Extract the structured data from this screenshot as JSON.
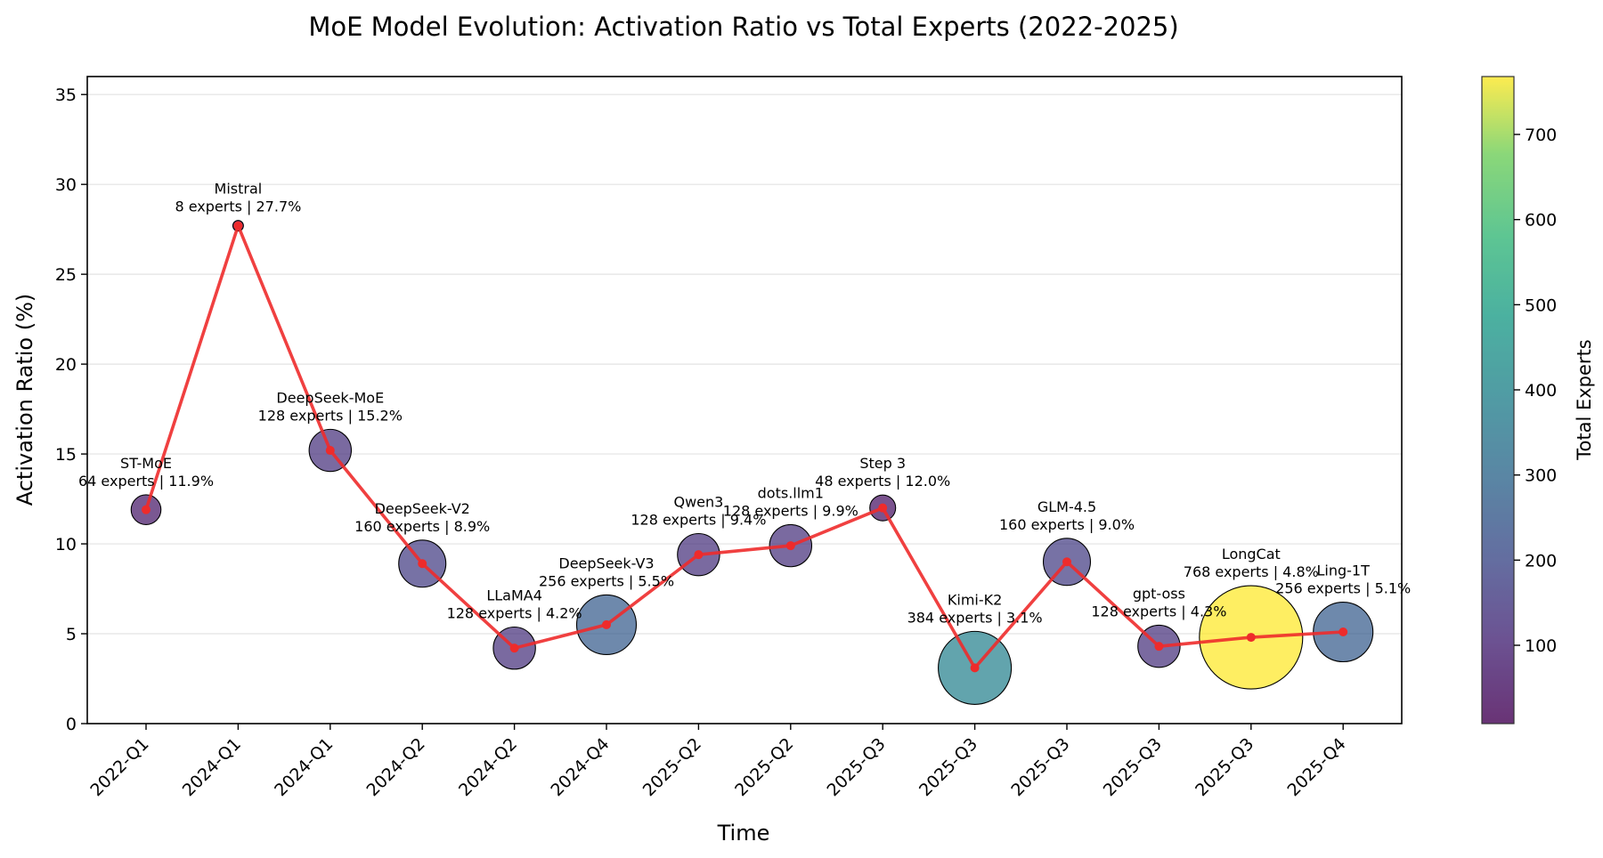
{
  "chart_data": {
    "type": "scatter",
    "title": "MoE Model Evolution: Activation Ratio vs Total Experts (2022-2025)",
    "xlabel": "Time",
    "ylabel": "Activation Ratio (%)",
    "ylim": [
      0,
      36
    ],
    "yticks": [
      0,
      5,
      10,
      15,
      20,
      25,
      30,
      35
    ],
    "grid": "horizontal",
    "line_color": "#ee2b2b",
    "colormap": "viridis",
    "colorbar": {
      "label": "Total Experts",
      "range": [
        8,
        768
      ],
      "ticks": [
        100,
        200,
        300,
        400,
        500,
        600,
        700
      ]
    },
    "categories": [
      "2022-Q1",
      "2024-Q1",
      "2024-Q1",
      "2024-Q2",
      "2024-Q2",
      "2024-Q4",
      "2025-Q2",
      "2025-Q2",
      "2025-Q3",
      "2025-Q3",
      "2025-Q3",
      "2025-Q3",
      "2025-Q3",
      "2025-Q4"
    ],
    "models": [
      {
        "name": "ST-MoE",
        "experts": 64,
        "ratio": 11.9,
        "label": "64 experts | 11.9%"
      },
      {
        "name": "Mistral",
        "experts": 8,
        "ratio": 27.7,
        "label": "8 experts | 27.7%"
      },
      {
        "name": "DeepSeek-MoE",
        "experts": 128,
        "ratio": 15.2,
        "label": "128 experts | 15.2%"
      },
      {
        "name": "DeepSeek-V2",
        "experts": 160,
        "ratio": 8.9,
        "label": "160 experts | 8.9%"
      },
      {
        "name": "LLaMA4",
        "experts": 128,
        "ratio": 4.2,
        "label": "128 experts | 4.2%"
      },
      {
        "name": "DeepSeek-V3",
        "experts": 256,
        "ratio": 5.5,
        "label": "256 experts | 5.5%"
      },
      {
        "name": "Qwen3",
        "experts": 128,
        "ratio": 9.4,
        "label": "128 experts | 9.4%"
      },
      {
        "name": "dots.llm1",
        "experts": 128,
        "ratio": 9.9,
        "label": "128 experts | 9.9%"
      },
      {
        "name": "Step 3",
        "experts": 48,
        "ratio": 12.0,
        "label": "48 experts | 12.0%"
      },
      {
        "name": "Kimi-K2",
        "experts": 384,
        "ratio": 3.1,
        "label": "384 experts | 3.1%"
      },
      {
        "name": "GLM-4.5",
        "experts": 160,
        "ratio": 9.0,
        "label": "160 experts | 9.0%"
      },
      {
        "name": "gpt-oss",
        "experts": 128,
        "ratio": 4.3,
        "label": "128 experts | 4.3%"
      },
      {
        "name": "LongCat",
        "experts": 768,
        "ratio": 4.8,
        "label": "768 experts | 4.8%"
      },
      {
        "name": "Ling-1T",
        "experts": 256,
        "ratio": 5.1,
        "label": "256 experts | 5.1%"
      }
    ]
  }
}
